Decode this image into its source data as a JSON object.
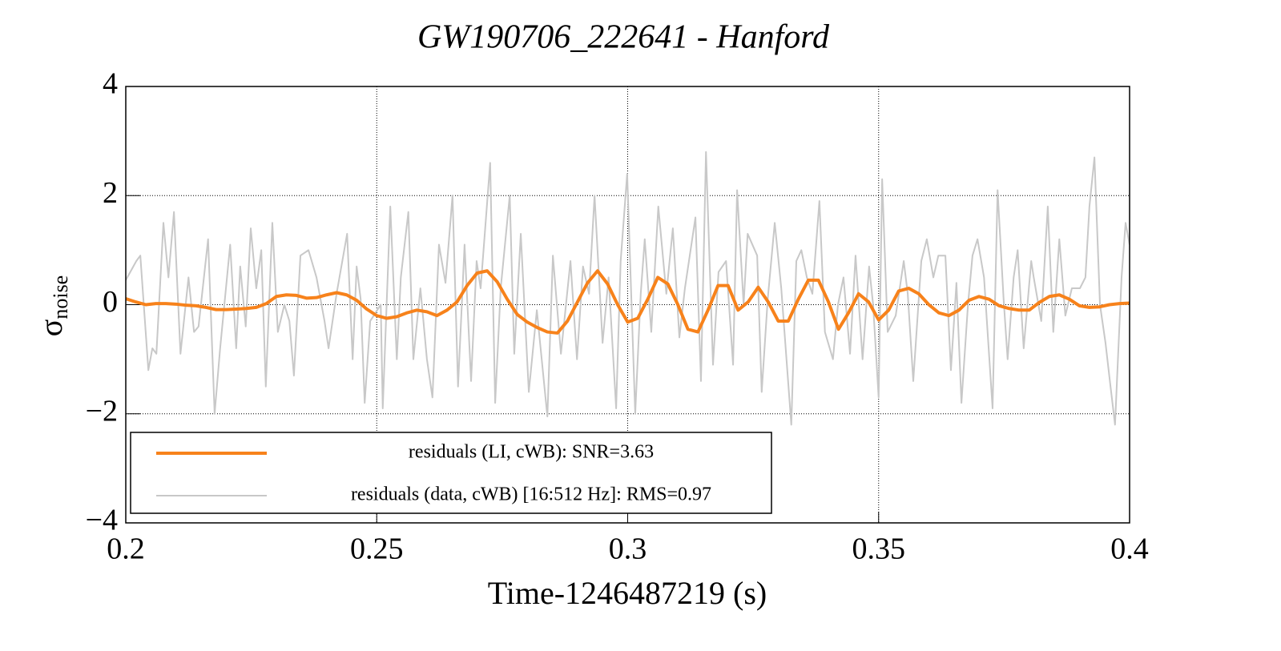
{
  "chart_data": {
    "type": "line",
    "title": "GW190706_222641 - Hanford",
    "xlabel": "Time-1246487219 (s)",
    "ylabel": "σ",
    "ylabel_sub": "noise",
    "xlim": [
      0.2,
      0.4
    ],
    "xticks": [
      0.2,
      0.25,
      0.3,
      0.35,
      0.4
    ],
    "ylim": [
      -4,
      4
    ],
    "yticks": [
      {
        "value": -4,
        "label": "−4"
      },
      {
        "value": -2,
        "label": "−2"
      },
      0,
      2,
      4
    ],
    "grid": true,
    "legend": "lower left",
    "series": [
      {
        "name": "residuals (LI, cWB): SNR=3.63",
        "color": "#f7821b",
        "x": [
          0.2,
          0.202,
          0.204,
          0.206,
          0.208,
          0.21,
          0.212,
          0.214,
          0.216,
          0.218,
          0.22,
          0.222,
          0.224,
          0.226,
          0.228,
          0.23,
          0.232,
          0.234,
          0.236,
          0.238,
          0.24,
          0.242,
          0.244,
          0.246,
          0.248,
          0.25,
          0.252,
          0.254,
          0.256,
          0.258,
          0.26,
          0.262,
          0.264,
          0.266,
          0.268,
          0.27,
          0.272,
          0.274,
          0.276,
          0.278,
          0.28,
          0.282,
          0.284,
          0.286,
          0.288,
          0.29,
          0.292,
          0.294,
          0.296,
          0.298,
          0.3,
          0.302,
          0.304,
          0.306,
          0.308,
          0.31,
          0.312,
          0.314,
          0.316,
          0.318,
          0.32,
          0.322,
          0.324,
          0.326,
          0.328,
          0.33,
          0.332,
          0.334,
          0.336,
          0.338,
          0.34,
          0.342,
          0.344,
          0.346,
          0.348,
          0.35,
          0.352,
          0.354,
          0.356,
          0.358,
          0.36,
          0.362,
          0.364,
          0.366,
          0.368,
          0.37,
          0.372,
          0.374,
          0.376,
          0.378,
          0.38,
          0.382,
          0.384,
          0.386,
          0.388,
          0.39,
          0.392,
          0.394,
          0.396,
          0.398,
          0.4
        ],
        "values": [
          0.11,
          0.05,
          0.0,
          0.02,
          0.02,
          0.01,
          -0.01,
          -0.02,
          -0.05,
          -0.09,
          -0.09,
          -0.08,
          -0.07,
          -0.05,
          0.02,
          0.15,
          0.18,
          0.17,
          0.12,
          0.13,
          0.18,
          0.22,
          0.18,
          0.08,
          -0.08,
          -0.2,
          -0.25,
          -0.22,
          -0.15,
          -0.1,
          -0.13,
          -0.2,
          -0.1,
          0.05,
          0.35,
          0.58,
          0.62,
          0.42,
          0.1,
          -0.18,
          -0.32,
          -0.42,
          -0.5,
          -0.52,
          -0.3,
          0.05,
          0.4,
          0.62,
          0.38,
          0.0,
          -0.32,
          -0.25,
          0.1,
          0.5,
          0.38,
          0.0,
          -0.45,
          -0.5,
          -0.1,
          0.35,
          0.35,
          -0.1,
          0.05,
          0.32,
          0.05,
          -0.3,
          -0.3,
          0.1,
          0.45,
          0.45,
          0.05,
          -0.45,
          -0.15,
          0.2,
          0.05,
          -0.28,
          -0.1,
          0.25,
          0.3,
          0.2,
          0.0,
          -0.15,
          -0.2,
          -0.1,
          0.08,
          0.15,
          0.1,
          -0.02,
          -0.07,
          -0.1,
          -0.1,
          0.04,
          0.15,
          0.18,
          0.1,
          -0.02,
          -0.05,
          -0.04,
          0.0,
          0.02,
          0.03
        ]
      },
      {
        "name": "residuals (data, cWB) [16:512 Hz]: RMS=0.97",
        "color": "#c8c8c8",
        "x": [
          0.2,
          0.2021,
          0.2029,
          0.2045,
          0.2053,
          0.2061,
          0.2075,
          0.2085,
          0.2096,
          0.2109,
          0.2125,
          0.2136,
          0.2145,
          0.2164,
          0.2177,
          0.2188,
          0.2208,
          0.222,
          0.2228,
          0.2239,
          0.2249,
          0.226,
          0.227,
          0.2279,
          0.2292,
          0.2303,
          0.2316,
          0.2326,
          0.2335,
          0.2348,
          0.2364,
          0.238,
          0.2396,
          0.2404,
          0.242,
          0.2441,
          0.2452,
          0.246,
          0.2468,
          0.2476,
          0.2487,
          0.2508,
          0.2512,
          0.2527,
          0.254,
          0.2548,
          0.2563,
          0.2573,
          0.2587,
          0.26,
          0.2611,
          0.2624,
          0.2637,
          0.2651,
          0.2662,
          0.2675,
          0.2688,
          0.2699,
          0.2707,
          0.2726,
          0.2736,
          0.2747,
          0.2765,
          0.2774,
          0.2787,
          0.2803,
          0.2819,
          0.284,
          0.2851,
          0.2867,
          0.2886,
          0.2899,
          0.2911,
          0.2923,
          0.2934,
          0.295,
          0.2962,
          0.2977,
          0.2986,
          0.2999,
          0.3015,
          0.3026,
          0.3034,
          0.3047,
          0.3061,
          0.3077,
          0.309,
          0.3103,
          0.3114,
          0.3135,
          0.3146,
          0.3156,
          0.317,
          0.3181,
          0.3196,
          0.321,
          0.3218,
          0.3231,
          0.3239,
          0.3258,
          0.3267,
          0.3279,
          0.3293,
          0.3306,
          0.3326,
          0.3336,
          0.3346,
          0.3357,
          0.3368,
          0.3382,
          0.3393,
          0.3409,
          0.3419,
          0.343,
          0.3443,
          0.3454,
          0.3468,
          0.3481,
          0.3489,
          0.35,
          0.3507,
          0.3518,
          0.3534,
          0.355,
          0.3558,
          0.3569,
          0.3585,
          0.3596,
          0.3609,
          0.3619,
          0.3633,
          0.3644,
          0.3655,
          0.3665,
          0.3678,
          0.3687,
          0.3697,
          0.371,
          0.3727,
          0.3737,
          0.3749,
          0.3757,
          0.3769,
          0.3777,
          0.3789,
          0.3804,
          0.3809,
          0.3824,
          0.3837,
          0.3848,
          0.386,
          0.3872,
          0.3885,
          0.3901,
          0.3912,
          0.392,
          0.393,
          0.3941,
          0.3952,
          0.3962,
          0.3971,
          0.3984,
          0.3992,
          0.4
        ],
        "values": [
          0.45,
          0.8,
          0.9,
          -1.2,
          -0.8,
          -0.9,
          1.5,
          0.5,
          1.7,
          -0.9,
          0.5,
          -0.5,
          -0.4,
          1.2,
          -2.0,
          -0.8,
          1.1,
          -0.8,
          0.7,
          -0.4,
          1.4,
          0.3,
          1.0,
          -1.5,
          1.5,
          -0.5,
          0.0,
          -0.3,
          -1.3,
          0.9,
          1.0,
          0.5,
          -0.3,
          -0.8,
          0.2,
          1.3,
          -1.0,
          0.7,
          0.1,
          -1.8,
          -0.3,
          0.0,
          -1.9,
          1.8,
          -1.0,
          0.5,
          1.7,
          -1.0,
          0.3,
          -1.0,
          -1.7,
          1.1,
          0.4,
          2.0,
          -1.5,
          1.1,
          -1.4,
          0.8,
          0.3,
          2.6,
          -1.8,
          0.3,
          2.0,
          -0.9,
          1.3,
          -1.6,
          -0.1,
          -2.05,
          0.9,
          -0.9,
          0.8,
          -1.0,
          0.7,
          0.2,
          2.0,
          -0.7,
          0.5,
          -1.9,
          0.8,
          2.4,
          -2.0,
          0.2,
          1.2,
          -0.5,
          1.8,
          0.2,
          1.4,
          -0.6,
          0.3,
          1.6,
          -1.4,
          2.8,
          -1.1,
          0.6,
          0.8,
          -1.1,
          2.1,
          0.0,
          1.3,
          0.9,
          -1.6,
          0.1,
          1.5,
          0.3,
          -2.2,
          0.8,
          1.0,
          0.5,
          0.2,
          1.9,
          -0.5,
          -1.0,
          0.0,
          0.5,
          -0.9,
          0.9,
          -1.0,
          0.7,
          0.0,
          -1.7,
          2.3,
          -0.5,
          -0.2,
          0.8,
          0.2,
          -1.4,
          0.8,
          1.2,
          0.5,
          0.9,
          0.9,
          -1.2,
          0.4,
          -1.8,
          0.0,
          0.9,
          1.2,
          0.5,
          -1.9,
          2.1,
          0.1,
          -1.0,
          0.5,
          1.0,
          -0.8,
          0.8,
          0.5,
          -0.3,
          1.8,
          -0.5,
          1.2,
          -0.2,
          0.3,
          0.3,
          0.5,
          1.8,
          2.7,
          0.0,
          -0.7,
          -1.5,
          -2.2,
          0.5,
          1.5,
          1.1
        ]
      }
    ]
  }
}
